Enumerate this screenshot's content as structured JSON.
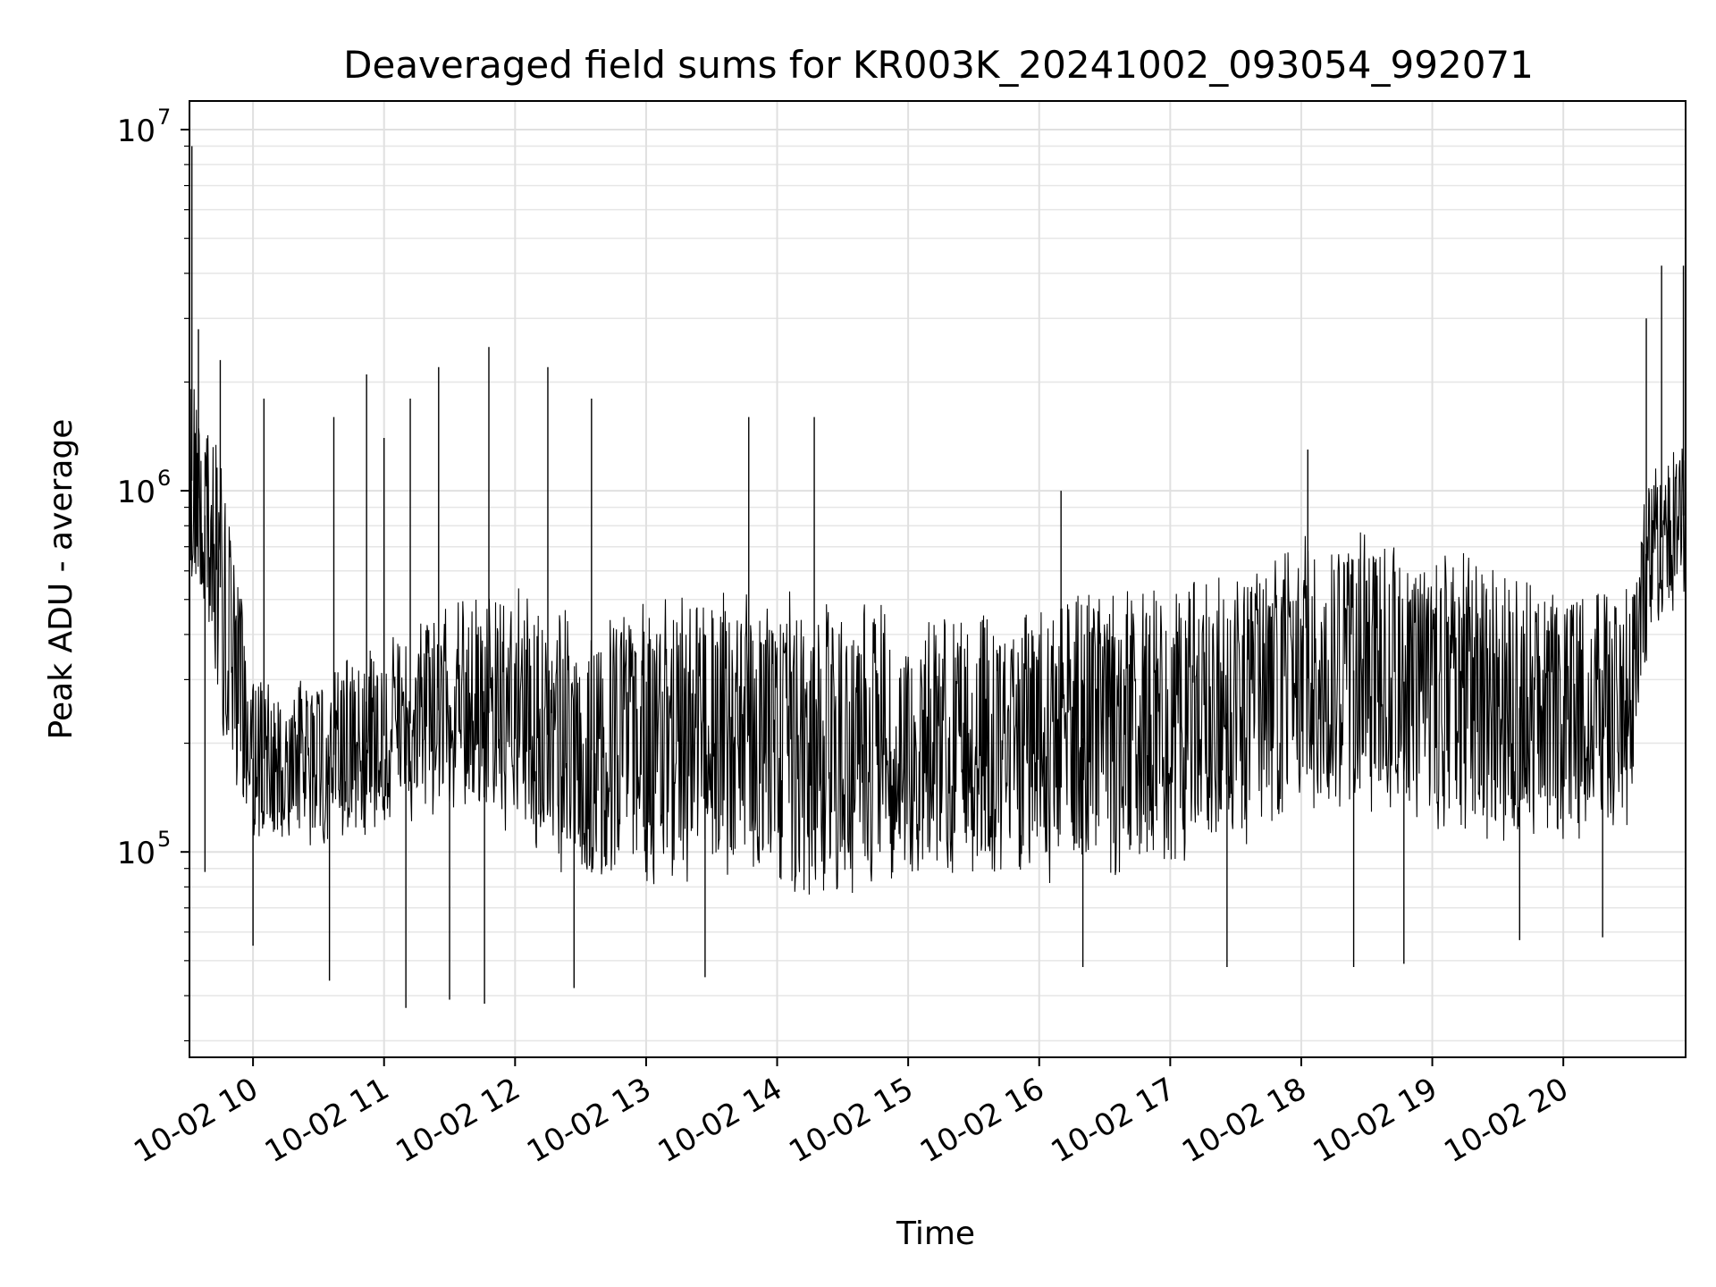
{
  "chart_data": {
    "type": "line",
    "title": "Deaveraged field sums for KR003K_20241002_093054_992071",
    "xlabel": "Time",
    "ylabel": "Peak ADU - average",
    "y_scale": "log",
    "ylim": [
      27000,
      12000000
    ],
    "xlim": [
      "2024-10-02T09:30:54",
      "2024-10-02T20:56:00"
    ],
    "grid": true,
    "legend": "none",
    "line_color": "#000000",
    "x_ticks": [
      {
        "t": "2024-10-02T10:00",
        "label": "10-02 10"
      },
      {
        "t": "2024-10-02T11:00",
        "label": "10-02 11"
      },
      {
        "t": "2024-10-02T12:00",
        "label": "10-02 12"
      },
      {
        "t": "2024-10-02T13:00",
        "label": "10-02 13"
      },
      {
        "t": "2024-10-02T14:00",
        "label": "10-02 14"
      },
      {
        "t": "2024-10-02T15:00",
        "label": "10-02 15"
      },
      {
        "t": "2024-10-02T16:00",
        "label": "10-02 16"
      },
      {
        "t": "2024-10-02T17:00",
        "label": "10-02 17"
      },
      {
        "t": "2024-10-02T18:00",
        "label": "10-02 18"
      },
      {
        "t": "2024-10-02T19:00",
        "label": "10-02 19"
      },
      {
        "t": "2024-10-02T20:00",
        "label": "10-02 20"
      }
    ],
    "y_ticks": [
      {
        "value": 100000,
        "base": "10",
        "exp": "5"
      },
      {
        "value": 1000000,
        "base": "10",
        "exp": "6"
      },
      {
        "value": 10000000,
        "base": "10",
        "exp": "7"
      }
    ],
    "envelope": [
      {
        "t": "2024-10-02T09:30",
        "low": 600000,
        "high": 2200000
      },
      {
        "t": "2024-10-02T09:40",
        "low": 350000,
        "high": 1800000
      },
      {
        "t": "2024-10-02T09:50",
        "low": 150000,
        "high": 900000
      },
      {
        "t": "2024-10-02T10:00",
        "low": 110000,
        "high": 300000
      },
      {
        "t": "2024-10-02T10:30",
        "low": 100000,
        "high": 320000
      },
      {
        "t": "2024-10-02T11:00",
        "low": 110000,
        "high": 400000
      },
      {
        "t": "2024-10-02T11:30",
        "low": 130000,
        "high": 500000
      },
      {
        "t": "2024-10-02T12:00",
        "low": 100000,
        "high": 550000
      },
      {
        "t": "2024-10-02T12:30",
        "low": 80000,
        "high": 450000
      },
      {
        "t": "2024-10-02T13:00",
        "low": 80000,
        "high": 500000
      },
      {
        "t": "2024-10-02T13:30",
        "low": 80000,
        "high": 550000
      },
      {
        "t": "2024-10-02T14:00",
        "low": 80000,
        "high": 550000
      },
      {
        "t": "2024-10-02T14:30",
        "low": 70000,
        "high": 500000
      },
      {
        "t": "2024-10-02T15:00",
        "low": 80000,
        "high": 480000
      },
      {
        "t": "2024-10-02T15:30",
        "low": 80000,
        "high": 450000
      },
      {
        "t": "2024-10-02T16:00",
        "low": 80000,
        "high": 500000
      },
      {
        "t": "2024-10-02T16:30",
        "low": 80000,
        "high": 550000
      },
      {
        "t": "2024-10-02T17:00",
        "low": 90000,
        "high": 550000
      },
      {
        "t": "2024-10-02T17:30",
        "low": 100000,
        "high": 600000
      },
      {
        "t": "2024-10-02T18:00",
        "low": 120000,
        "high": 750000
      },
      {
        "t": "2024-10-02T18:30",
        "low": 130000,
        "high": 800000
      },
      {
        "t": "2024-10-02T19:00",
        "low": 110000,
        "high": 700000
      },
      {
        "t": "2024-10-02T19:30",
        "low": 100000,
        "high": 650000
      },
      {
        "t": "2024-10-02T20:00",
        "low": 100000,
        "high": 580000
      },
      {
        "t": "2024-10-02T20:30",
        "low": 110000,
        "high": 600000
      },
      {
        "t": "2024-10-02T20:40",
        "low": 400000,
        "high": 1200000
      },
      {
        "t": "2024-10-02T20:56",
        "low": 500000,
        "high": 1500000
      }
    ],
    "spikes": [
      {
        "t": "2024-10-02T09:32",
        "value": 9000000
      },
      {
        "t": "2024-10-02T09:35",
        "value": 2800000
      },
      {
        "t": "2024-10-02T09:38",
        "value": 88000
      },
      {
        "t": "2024-10-02T09:45",
        "value": 2300000
      },
      {
        "t": "2024-10-02T10:00",
        "value": 55000
      },
      {
        "t": "2024-10-02T10:05",
        "value": 1800000
      },
      {
        "t": "2024-10-02T10:35",
        "value": 44000
      },
      {
        "t": "2024-10-02T10:37",
        "value": 1600000
      },
      {
        "t": "2024-10-02T10:52",
        "value": 2100000
      },
      {
        "t": "2024-10-02T11:00",
        "value": 1400000
      },
      {
        "t": "2024-10-02T11:10",
        "value": 37000
      },
      {
        "t": "2024-10-02T11:12",
        "value": 1800000
      },
      {
        "t": "2024-10-02T11:25",
        "value": 2200000
      },
      {
        "t": "2024-10-02T11:30",
        "value": 39000
      },
      {
        "t": "2024-10-02T11:46",
        "value": 38000
      },
      {
        "t": "2024-10-02T11:48",
        "value": 2500000
      },
      {
        "t": "2024-10-02T12:15",
        "value": 2200000
      },
      {
        "t": "2024-10-02T12:27",
        "value": 42000
      },
      {
        "t": "2024-10-02T12:35",
        "value": 1800000
      },
      {
        "t": "2024-10-02T13:47",
        "value": 1600000
      },
      {
        "t": "2024-10-02T14:17",
        "value": 1600000
      },
      {
        "t": "2024-10-02T13:27",
        "value": 45000
      },
      {
        "t": "2024-10-02T16:10",
        "value": 1000000
      },
      {
        "t": "2024-10-02T16:20",
        "value": 48000
      },
      {
        "t": "2024-10-02T17:26",
        "value": 48000
      },
      {
        "t": "2024-10-02T18:03",
        "value": 1300000
      },
      {
        "t": "2024-10-02T18:24",
        "value": 48000
      },
      {
        "t": "2024-10-02T18:47",
        "value": 49000
      },
      {
        "t": "2024-10-02T19:40",
        "value": 57000
      },
      {
        "t": "2024-10-02T20:18",
        "value": 58000
      },
      {
        "t": "2024-10-02T20:38",
        "value": 3000000
      },
      {
        "t": "2024-10-02T20:45",
        "value": 4200000
      },
      {
        "t": "2024-10-02T20:55",
        "value": 4200000
      }
    ]
  }
}
